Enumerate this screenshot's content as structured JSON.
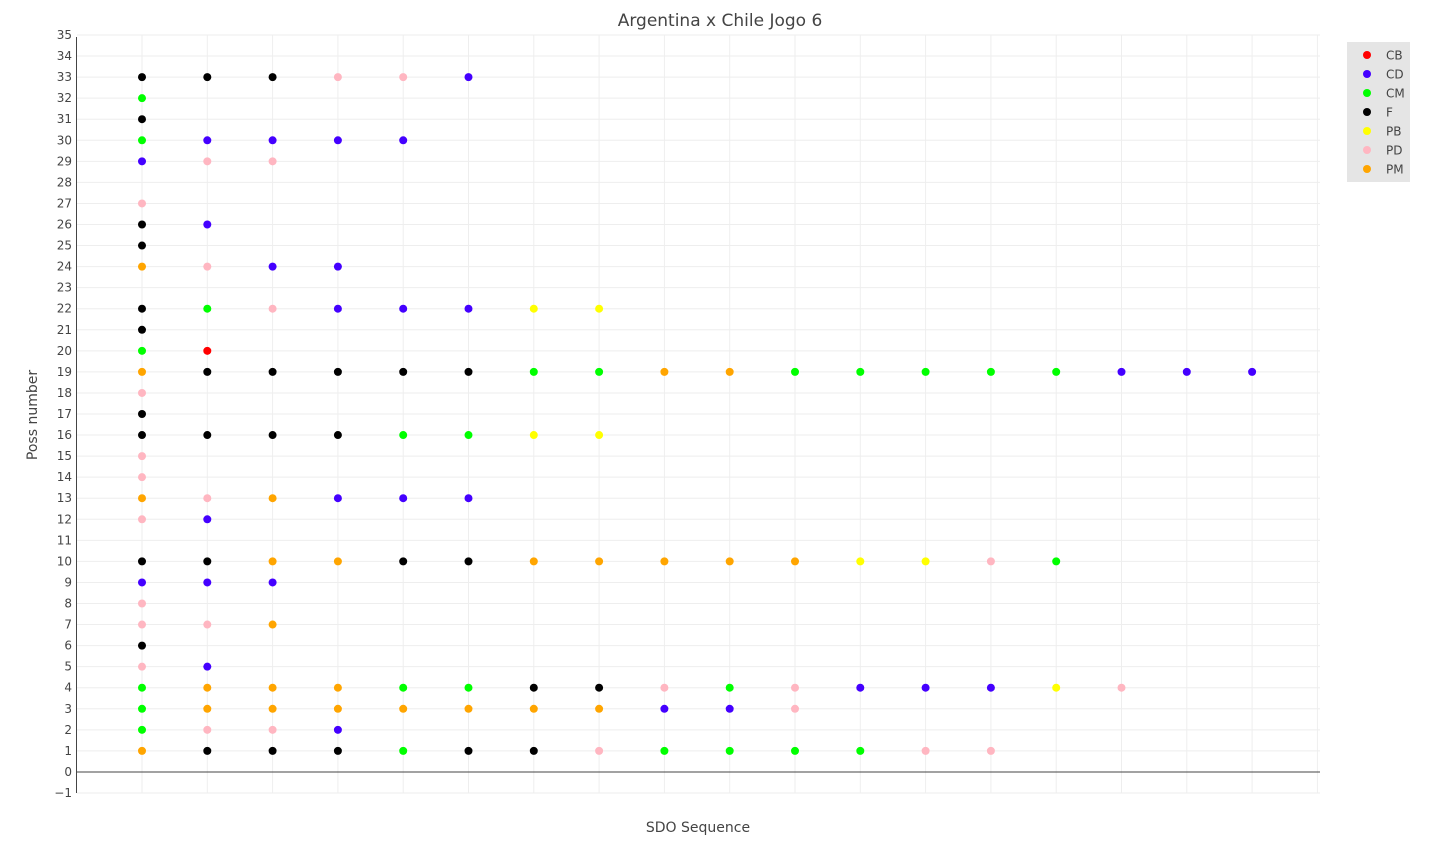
{
  "chart_data": {
    "type": "scatter",
    "title": "Argentina x Chile Jogo 6",
    "xlabel": "SDO Sequence",
    "ylabel": "Poss number",
    "xlim": [
      0,
      19
    ],
    "ylim": [
      -1,
      35
    ],
    "yticks": [
      "−1",
      "0",
      "1",
      "2",
      "3",
      "4",
      "5",
      "6",
      "7",
      "8",
      "9",
      "10",
      "11",
      "12",
      "13",
      "14",
      "15",
      "16",
      "17",
      "18",
      "19",
      "20",
      "21",
      "22",
      "23",
      "24",
      "25",
      "26",
      "27",
      "28",
      "29",
      "30",
      "31",
      "32",
      "33",
      "34",
      "35"
    ],
    "x_tick_labels_visible": false,
    "grid": true,
    "legend_position": "top-right",
    "legend": [
      "CB",
      "CD",
      "CM",
      "F",
      "PB",
      "PD",
      "PM"
    ],
    "colors": {
      "CB": "#ff0000",
      "CD": "#4400ff",
      "CM": "#00ff00",
      "F": "#000000",
      "PB": "#ffff00",
      "PD": "#ffb6c1",
      "PM": "#ffa500"
    },
    "possessions": [
      {
        "poss": 1,
        "seq": [
          "PM",
          "F",
          "F",
          "F",
          "CM",
          "F",
          "F",
          "PD",
          "CM",
          "CM",
          "CM",
          "CM",
          "PD",
          "PD"
        ]
      },
      {
        "poss": 2,
        "seq": [
          "CM",
          "PD",
          "PD",
          "CD"
        ]
      },
      {
        "poss": 3,
        "seq": [
          "CM",
          "PM",
          "PM",
          "PM",
          "PM",
          "PM",
          "PM",
          "PM",
          "CD",
          "CD",
          "PD"
        ]
      },
      {
        "poss": 4,
        "seq": [
          "CM",
          "PM",
          "PM",
          "PM",
          "CM",
          "CM",
          "F",
          "F",
          "PD",
          "CM",
          "PD",
          "CD",
          "CD",
          "CD",
          "PB",
          "PD"
        ]
      },
      {
        "poss": 5,
        "seq": [
          "PD",
          "CD"
        ]
      },
      {
        "poss": 6,
        "seq": [
          "F"
        ]
      },
      {
        "poss": 7,
        "seq": [
          "PD",
          "PD",
          "PM"
        ]
      },
      {
        "poss": 8,
        "seq": [
          "PD"
        ]
      },
      {
        "poss": 9,
        "seq": [
          "CD",
          "CD",
          "CD"
        ]
      },
      {
        "poss": 10,
        "seq": [
          "F",
          "F",
          "PM",
          "PM",
          "F",
          "F",
          "PM",
          "PM",
          "PM",
          "PM",
          "PM",
          "PB",
          "PB",
          "PD",
          "CM"
        ]
      },
      {
        "poss": 12,
        "seq": [
          "PD",
          "CD"
        ]
      },
      {
        "poss": 13,
        "seq": [
          "PM",
          "PD",
          "PM",
          "CD",
          "CD",
          "CD"
        ]
      },
      {
        "poss": 14,
        "seq": [
          "PD"
        ]
      },
      {
        "poss": 15,
        "seq": [
          "PD"
        ]
      },
      {
        "poss": 16,
        "seq": [
          "F",
          "F",
          "F",
          "F",
          "CM",
          "CM",
          "PB",
          "PB"
        ]
      },
      {
        "poss": 17,
        "seq": [
          "F"
        ]
      },
      {
        "poss": 18,
        "seq": [
          "PD"
        ]
      },
      {
        "poss": 19,
        "seq": [
          "PM",
          "F",
          "F",
          "F",
          "F",
          "F",
          "CM",
          "CM",
          "PM",
          "PM",
          "CM",
          "CM",
          "CM",
          "CM",
          "CM",
          "CD",
          "CD",
          "CD"
        ]
      },
      {
        "poss": 20,
        "seq": [
          "CM",
          "CB"
        ]
      },
      {
        "poss": 21,
        "seq": [
          "F"
        ]
      },
      {
        "poss": 22,
        "seq": [
          "F",
          "CM",
          "PD",
          "CD",
          "CD",
          "CD",
          "PB",
          "PB"
        ]
      },
      {
        "poss": 24,
        "seq": [
          "PM",
          "PD",
          "CD",
          "CD"
        ]
      },
      {
        "poss": 25,
        "seq": [
          "F"
        ]
      },
      {
        "poss": 26,
        "seq": [
          "F",
          "CD"
        ]
      },
      {
        "poss": 27,
        "seq": [
          "PD"
        ]
      },
      {
        "poss": 29,
        "seq": [
          "CD",
          "PD",
          "PD"
        ]
      },
      {
        "poss": 30,
        "seq": [
          "CM",
          "CD",
          "CD",
          "CD",
          "CD"
        ]
      },
      {
        "poss": 31,
        "seq": [
          "F"
        ]
      },
      {
        "poss": 32,
        "seq": [
          "CM"
        ]
      },
      {
        "poss": 33,
        "seq": [
          "F",
          "F",
          "F",
          "PD",
          "PD",
          "CD"
        ]
      }
    ]
  }
}
